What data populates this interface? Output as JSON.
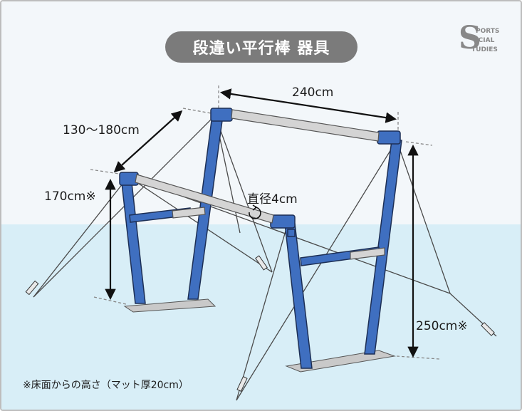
{
  "title": "段違い平行棒 器具",
  "logo_text": "SPORTS SOCIAL STUDIES",
  "dimensions": {
    "bar_length": "240cm",
    "bar_spacing": "130〜180cm",
    "low_bar_height": "170cm※",
    "high_bar_height": "250cm※",
    "bar_diameter": "直径4cm"
  },
  "footnote": "※床面からの高さ（マット厚20cm）",
  "colors": {
    "frame_blue": "#3f6fc0",
    "frame_outline": "#1d2f55",
    "bar_gray": "#d4d4d4",
    "sky": "#f3f7fa",
    "water": "#d8eef7",
    "title_bg": "#7b7b7b"
  }
}
